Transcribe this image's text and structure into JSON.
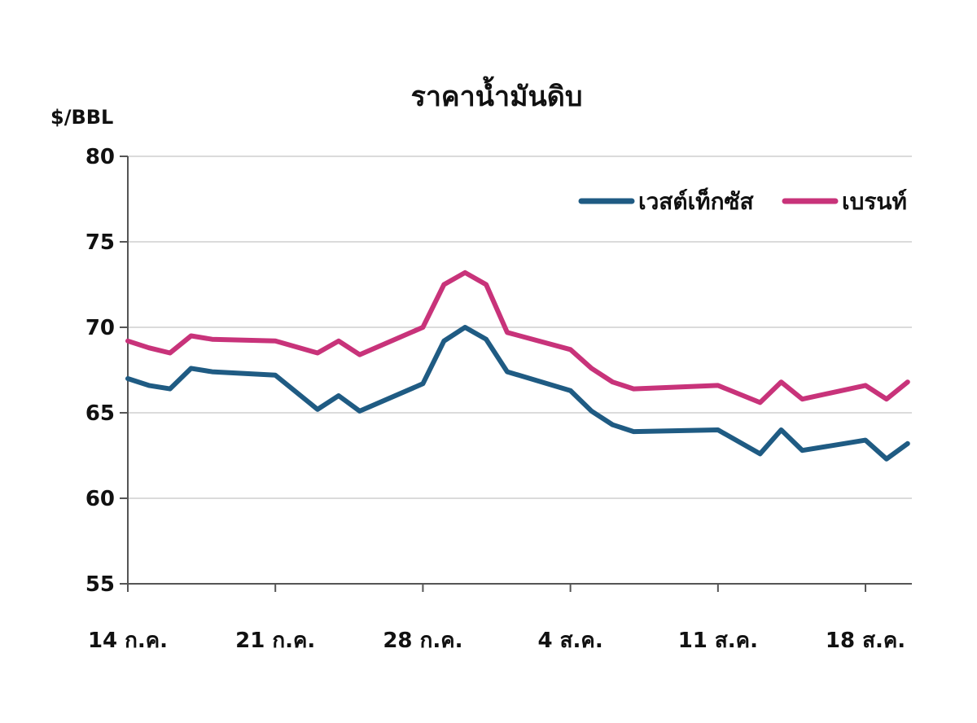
{
  "chart_data": {
    "type": "line",
    "title": "ราคาน้ำมันดิบ",
    "ylabel": "$/BBL",
    "xlabel": "",
    "ylim": [
      55,
      80
    ],
    "yticks": [
      55,
      60,
      65,
      70,
      75,
      80
    ],
    "xtick_labels": [
      "14 ก.ค.",
      "21 ก.ค.",
      "28 ก.ค.",
      "4 ส.ค.",
      "11 ส.ค.",
      "18 ส.ค."
    ],
    "xtick_positions": [
      0,
      7,
      14,
      21,
      28,
      35
    ],
    "x": [
      0,
      1,
      2,
      3,
      4,
      7,
      9,
      10,
      11,
      14,
      15,
      16,
      17,
      18,
      21,
      22,
      23,
      24,
      28,
      30,
      31,
      32,
      35,
      36,
      37
    ],
    "grid": true,
    "legend_position": "top-right",
    "series": [
      {
        "name": "เวสต์เท็กซัส",
        "color": "#1f5b83",
        "values": [
          67.0,
          66.6,
          66.4,
          67.6,
          67.4,
          67.2,
          65.2,
          66.0,
          65.1,
          66.7,
          69.2,
          70.0,
          69.3,
          67.4,
          66.3,
          65.1,
          64.3,
          63.9,
          64.0,
          62.6,
          64.0,
          62.8,
          63.4,
          62.3,
          63.2
        ]
      },
      {
        "name": "เบรนท์",
        "color": "#c8337a",
        "values": [
          69.2,
          68.8,
          68.5,
          69.5,
          69.3,
          69.2,
          68.5,
          69.2,
          68.4,
          70.0,
          72.5,
          73.2,
          72.5,
          69.7,
          68.7,
          67.6,
          66.8,
          66.4,
          66.6,
          65.6,
          66.8,
          65.8,
          66.6,
          65.8,
          66.8
        ]
      }
    ]
  }
}
